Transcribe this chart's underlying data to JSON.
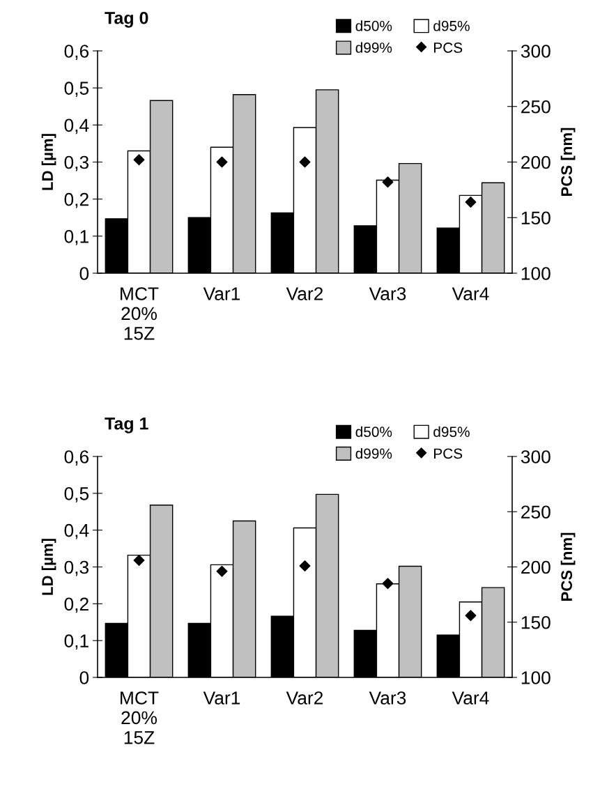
{
  "chart_data": [
    {
      "type": "bar",
      "title": "Tag 0",
      "ylabel": "LD [µm]",
      "y2label": "PCS [nm]",
      "categories": [
        "MCT\n20%\n15Z",
        "Var1",
        "Var2",
        "Var3",
        "Var4"
      ],
      "series": [
        {
          "name": "d50%",
          "color": "#000000",
          "values": [
            0.147,
            0.15,
            0.163,
            0.128,
            0.122
          ]
        },
        {
          "name": "d95%",
          "color": "#ffffff",
          "values": [
            0.33,
            0.34,
            0.393,
            0.251,
            0.21
          ]
        },
        {
          "name": "d99%",
          "color": "#c0c0c0",
          "values": [
            0.466,
            0.482,
            0.495,
            0.296,
            0.244
          ]
        },
        {
          "name": "PCS",
          "type": "scatter",
          "axis": "y2",
          "marker": "diamond",
          "color": "#000000",
          "values": [
            202,
            200,
            200,
            182,
            164
          ]
        }
      ],
      "ylim": [
        0,
        0.6
      ],
      "yticks": [
        0,
        {
          "value": 0.1,
          "label": "0,1"
        },
        {
          "value": 0.2,
          "label": "0,2"
        },
        {
          "value": 0.3,
          "label": "0,3"
        },
        {
          "value": 0.4,
          "label": "0,4"
        },
        {
          "value": 0.5,
          "label": "0,5"
        },
        {
          "value": 0.6,
          "label": "0,6"
        }
      ],
      "y2lim": [
        100,
        300
      ],
      "y2ticks": [
        100,
        150,
        200,
        250,
        300
      ],
      "legend": "top right",
      "grid": false
    },
    {
      "type": "bar",
      "title": "Tag 1",
      "ylabel": "LD [µm]",
      "y2label": "PCS [nm]",
      "categories": [
        "MCT\n20%\n15Z",
        "Var1",
        "Var2",
        "Var3",
        "Var4"
      ],
      "series": [
        {
          "name": "d50%",
          "color": "#000000",
          "values": [
            0.147,
            0.147,
            0.166,
            0.128,
            0.115
          ]
        },
        {
          "name": "d95%",
          "color": "#ffffff",
          "values": [
            0.332,
            0.306,
            0.406,
            0.254,
            0.205
          ]
        },
        {
          "name": "d99%",
          "color": "#c0c0c0",
          "values": [
            0.468,
            0.425,
            0.497,
            0.302,
            0.244
          ]
        },
        {
          "name": "PCS",
          "type": "scatter",
          "axis": "y2",
          "marker": "diamond",
          "color": "#000000",
          "values": [
            206,
            196,
            201,
            185,
            156
          ]
        }
      ],
      "ylim": [
        0,
        0.6
      ],
      "yticks": [
        0,
        {
          "value": 0.1,
          "label": "0,1"
        },
        {
          "value": 0.2,
          "label": "0,2"
        },
        {
          "value": 0.3,
          "label": "0,3"
        },
        {
          "value": 0.4,
          "label": "0,4"
        },
        {
          "value": 0.5,
          "label": "0,5"
        },
        {
          "value": 0.6,
          "label": "0,6"
        }
      ],
      "y2lim": [
        100,
        300
      ],
      "y2ticks": [
        100,
        150,
        200,
        250,
        300
      ],
      "legend": "top right",
      "grid": false
    }
  ]
}
